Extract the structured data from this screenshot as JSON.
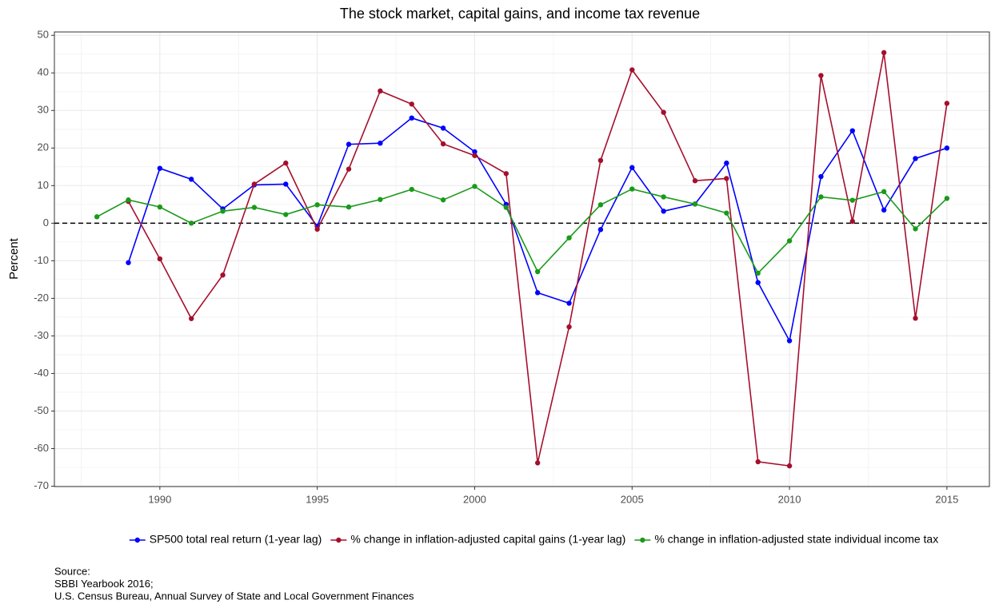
{
  "chart_data": {
    "type": "line",
    "title": "The stock market, capital gains, and income tax revenue",
    "y_label": "Percent",
    "x": [
      1988,
      1989,
      1990,
      1991,
      1992,
      1993,
      1994,
      1995,
      1996,
      1997,
      1998,
      1999,
      2000,
      2001,
      2002,
      2003,
      2004,
      2005,
      2006,
      2007,
      2008,
      2009,
      2010,
      2011,
      2012,
      2013,
      2014,
      2015
    ],
    "series": [
      {
        "name": "SP500 total real return (1-year lag)",
        "color": "#0000ff",
        "values": [
          null,
          -10.5,
          14.6,
          11.7,
          3.8,
          10.2,
          10.4,
          -0.8,
          21.0,
          21.3,
          28.0,
          25.3,
          19.0,
          5.0,
          -18.5,
          -21.3,
          -1.7,
          14.8,
          3.2,
          5.1,
          16.0,
          -15.8,
          -31.3,
          12.4,
          24.6,
          3.5,
          17.2,
          20.0
        ]
      },
      {
        "name": "% change in inflation-adjusted capital gains (1-year lag)",
        "color": "#a50f2d",
        "values": [
          null,
          5.8,
          -9.5,
          -25.4,
          -13.8,
          10.4,
          16.0,
          -1.6,
          14.4,
          35.2,
          31.7,
          21.1,
          18.0,
          13.2,
          -63.8,
          -27.6,
          16.7,
          40.8,
          29.5,
          11.3,
          11.9,
          -63.5,
          -64.6,
          39.3,
          0.5,
          45.4,
          -25.3,
          31.9
        ]
      },
      {
        "name": "% change in inflation-adjusted state individual income tax",
        "color": "#1a9a1a",
        "values": [
          1.7,
          6.2,
          4.3,
          0.0,
          3.2,
          4.2,
          2.3,
          4.9,
          4.3,
          6.3,
          9.0,
          6.2,
          9.8,
          4.2,
          -12.9,
          -3.9,
          4.9,
          9.1,
          7.0,
          5.1,
          2.7,
          -13.3,
          -4.7,
          7.0,
          6.1,
          8.4,
          -1.5,
          6.6
        ]
      }
    ],
    "xlim": [
      1986.65,
      2016.35
    ],
    "xticks": [
      1990,
      1995,
      2000,
      2005,
      2010,
      2015
    ],
    "ylim": [
      -70.1,
      50.9
    ],
    "yticks": [
      -70,
      -60,
      -50,
      -40,
      -30,
      -20,
      -10,
      0,
      10,
      20,
      30,
      40,
      50
    ],
    "reference_line": 0,
    "grid": true,
    "legend": "bottom",
    "caption": [
      "Source:",
      "SBBI Yearbook 2016;",
      "U.S. Census Bureau, Annual Survey of State and Local Government Finances"
    ]
  }
}
